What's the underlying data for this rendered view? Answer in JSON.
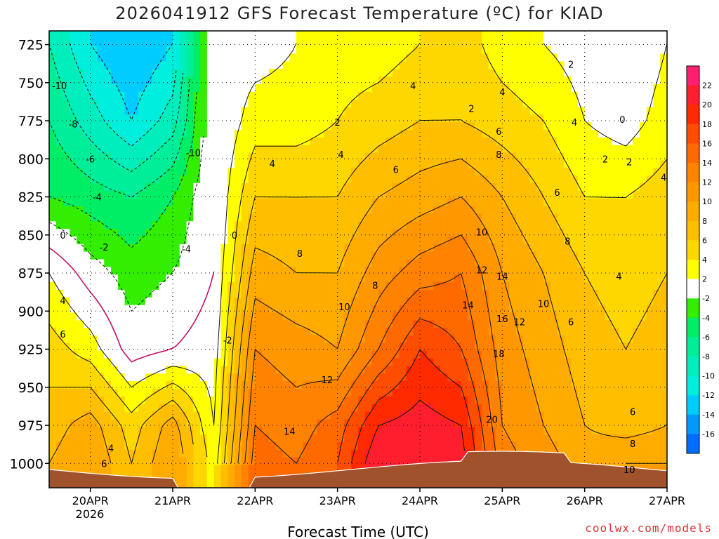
{
  "chart_data": {
    "type": "heatmap",
    "title": "2026041912 GFS Forecast Temperature (ºC) for KIAD",
    "xlabel": "Forecast Time (UTC)",
    "ylabel": "",
    "x_ticks": [
      {
        "value": 0,
        "label": "20APR"
      },
      {
        "value": 24,
        "label": "21APR"
      },
      {
        "value": 48,
        "label": "22APR"
      },
      {
        "value": 72,
        "label": "23APR"
      },
      {
        "value": 96,
        "label": "24APR"
      },
      {
        "value": 120,
        "label": "25APR"
      },
      {
        "value": 144,
        "label": "26APR"
      },
      {
        "value": 168,
        "label": "27APR"
      }
    ],
    "x_sublabel": "2026",
    "xlim": [
      -12,
      168
    ],
    "y_ticks": [
      725,
      750,
      775,
      800,
      825,
      850,
      875,
      900,
      925,
      950,
      975,
      1000
    ],
    "ylim": [
      1016,
      716
    ],
    "colorbar": {
      "labels": [
        "22",
        "20",
        "18",
        "16",
        "14",
        "12",
        "10",
        "8",
        "6",
        "4",
        "2",
        "-2",
        "-4",
        "-6",
        "-8",
        "-10",
        "-12",
        "-14",
        "-16"
      ],
      "colors": [
        "#ff1f6f",
        "#ff1e2e",
        "#ff2a00",
        "#ff4d00",
        "#ff6a00",
        "#ff8200",
        "#ff9700",
        "#ffab00",
        "#ffbf00",
        "#ffd700",
        "#ffff00",
        "#ffffff",
        "#33ee00",
        "#00ee66",
        "#00ee99",
        "#00eebb",
        "#00eedd",
        "#00ccff",
        "#0099ff",
        "#006dff"
      ]
    },
    "temperature_grid": {
      "hours": [
        -12,
        0,
        12,
        24,
        36,
        48,
        60,
        72,
        84,
        96,
        108,
        120,
        132,
        144,
        156,
        168
      ],
      "levels": [
        725,
        775,
        825,
        875,
        925,
        975,
        1000
      ],
      "values": [
        [
          -8,
          -12,
          -14,
          -12,
          1,
          1,
          2,
          3,
          3,
          4,
          5,
          3,
          2,
          1,
          0,
          2
        ],
        [
          -6,
          -9,
          -12,
          -9,
          0,
          3,
          3,
          4,
          5,
          6,
          6,
          5,
          4,
          2,
          1,
          3
        ],
        [
          -4,
          -5,
          -6,
          -4,
          0,
          6,
          6,
          6,
          8,
          9,
          10,
          8,
          6,
          4,
          4,
          5
        ],
        [
          2,
          -1,
          -3,
          -2,
          0,
          9,
          8,
          8,
          11,
          13,
          14,
          10,
          8,
          6,
          5,
          6
        ],
        [
          5,
          3,
          -1,
          0,
          1,
          12,
          11,
          10,
          14,
          18,
          16,
          11,
          9,
          7,
          6,
          7
        ],
        [
          7,
          9,
          5,
          9,
          2,
          14,
          13,
          15,
          20,
          21,
          20,
          12,
          10,
          8,
          7,
          8
        ],
        [
          8,
          10,
          6,
          10,
          3,
          15,
          14,
          16,
          22,
          22,
          21,
          13,
          11,
          9,
          10,
          10
        ]
      ]
    },
    "contour_labels": [
      {
        "x": -9,
        "p": 752,
        "text": "-10"
      },
      {
        "x": -5,
        "p": 777,
        "text": "-8"
      },
      {
        "x": 0,
        "p": 800,
        "text": "-6"
      },
      {
        "x": 2,
        "p": 825,
        "text": "-4"
      },
      {
        "x": 4,
        "p": 858,
        "text": "-2"
      },
      {
        "x": -8,
        "p": 850,
        "text": "0"
      },
      {
        "x": -8,
        "p": 893,
        "text": "4"
      },
      {
        "x": -8,
        "p": 915,
        "text": "6"
      },
      {
        "x": 30,
        "p": 796,
        "text": "-10"
      },
      {
        "x": 28,
        "p": 859,
        "text": "-4"
      },
      {
        "x": 40,
        "p": 919,
        "text": "-2"
      },
      {
        "x": 42,
        "p": 850,
        "text": "0"
      },
      {
        "x": 6,
        "p": 990,
        "text": "4"
      },
      {
        "x": 4,
        "p": 1000,
        "text": "6"
      },
      {
        "x": 53,
        "p": 803,
        "text": "4"
      },
      {
        "x": 61,
        "p": 862,
        "text": "8"
      },
      {
        "x": 58,
        "p": 979,
        "text": "14"
      },
      {
        "x": 69,
        "p": 945,
        "text": "12"
      },
      {
        "x": 74,
        "p": 897,
        "text": "10"
      },
      {
        "x": 83,
        "p": 883,
        "text": "8"
      },
      {
        "x": 72,
        "p": 776,
        "text": "2"
      },
      {
        "x": 73,
        "p": 797,
        "text": "4"
      },
      {
        "x": 89,
        "p": 807,
        "text": "6"
      },
      {
        "x": 94,
        "p": 752,
        "text": "4"
      },
      {
        "x": 111,
        "p": 767,
        "text": "2"
      },
      {
        "x": 114,
        "p": 848,
        "text": "10"
      },
      {
        "x": 114,
        "p": 873,
        "text": "12"
      },
      {
        "x": 110,
        "p": 896,
        "text": "14"
      },
      {
        "x": 120,
        "p": 877,
        "text": "14"
      },
      {
        "x": 120,
        "p": 905,
        "text": "16"
      },
      {
        "x": 125,
        "p": 907,
        "text": "12"
      },
      {
        "x": 117,
        "p": 971,
        "text": "20"
      },
      {
        "x": 119,
        "p": 928,
        "text": "18"
      },
      {
        "x": 120,
        "p": 756,
        "text": "4"
      },
      {
        "x": 119,
        "p": 782,
        "text": "6"
      },
      {
        "x": 119,
        "p": 797,
        "text": "8"
      },
      {
        "x": 132,
        "p": 895,
        "text": "10"
      },
      {
        "x": 139,
        "p": 854,
        "text": "8"
      },
      {
        "x": 136,
        "p": 822,
        "text": "6"
      },
      {
        "x": 141,
        "p": 776,
        "text": "4"
      },
      {
        "x": 140,
        "p": 738,
        "text": "2"
      },
      {
        "x": 140,
        "p": 907,
        "text": "6"
      },
      {
        "x": 150,
        "p": 800,
        "text": "2"
      },
      {
        "x": 155,
        "p": 774,
        "text": "0"
      },
      {
        "x": 157,
        "p": 802,
        "text": "2"
      },
      {
        "x": 154,
        "p": 877,
        "text": "4"
      },
      {
        "x": 158,
        "p": 966,
        "text": "6"
      },
      {
        "x": 158,
        "p": 987,
        "text": "8"
      },
      {
        "x": 157,
        "p": 1004,
        "text": "10"
      },
      {
        "x": 167,
        "p": 812,
        "text": "4"
      }
    ]
  },
  "watermark": "coolwx.com/models"
}
